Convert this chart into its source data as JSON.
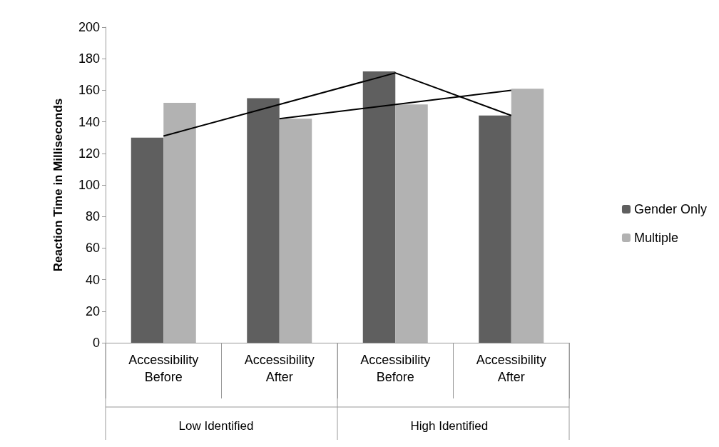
{
  "chart_data": {
    "type": "bar",
    "ylabel": "Reaction Time in Milliseconds",
    "categories": [
      "Accessibility Before",
      "Accessibility After",
      "Accessibility Before",
      "Accessibility After"
    ],
    "series": [
      {
        "name": "Gender Only",
        "color": "#5f5f5f",
        "values": [
          130,
          155,
          172,
          144
        ]
      },
      {
        "name": "Multiple",
        "color": "#b2b2b2",
        "values": [
          152,
          142,
          151,
          161
        ]
      },
      {
        "type": "line",
        "color": "#000000",
        "values": [
          131,
          null,
          171,
          144
        ]
      },
      {
        "type": "line",
        "color": "#000000",
        "values": [
          null,
          142,
          null,
          160
        ]
      }
    ],
    "annotations": [
      "Low Identified",
      "High Identified"
    ],
    "ylim": [
      0,
      200
    ],
    "yticks": [
      0,
      20,
      40,
      60,
      80,
      100,
      120,
      140,
      160,
      180,
      200
    ],
    "grid": false,
    "legend": "right"
  }
}
